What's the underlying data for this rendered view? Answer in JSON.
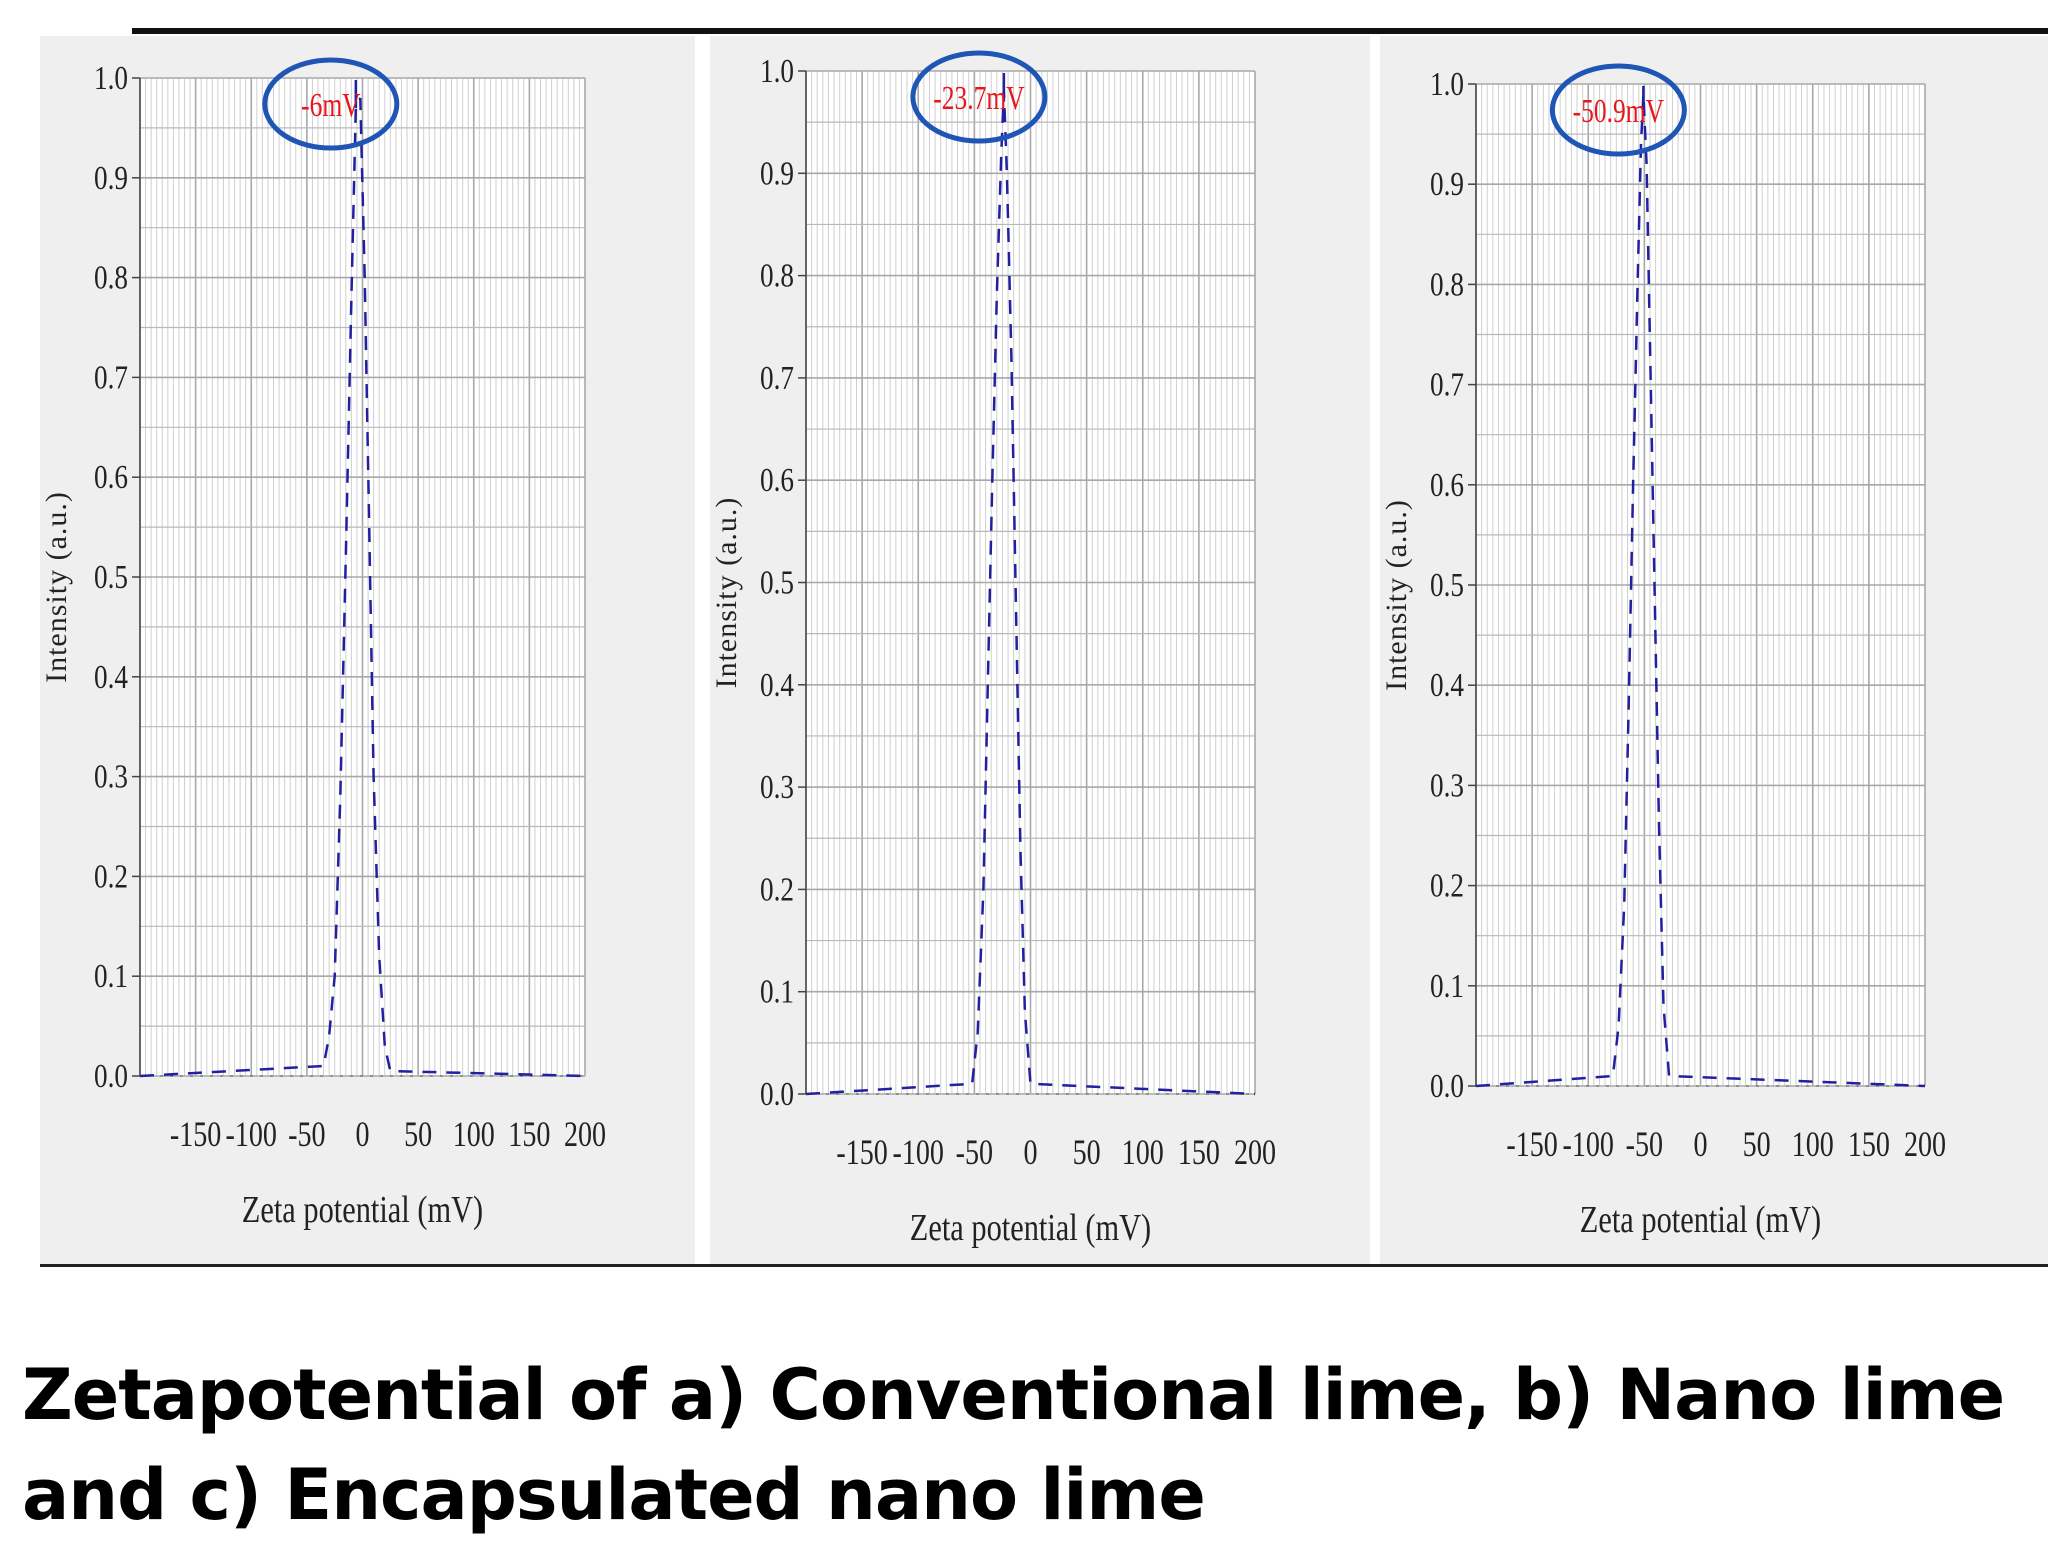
{
  "caption": "Zetapotential of a) Conventional lime, b) Nano lime and c) Encapsulated nano lime",
  "colors": {
    "curve": "#2020a0",
    "circle": "#1f55b5",
    "annotation": "#e8161d",
    "grid": "#b9b9b9",
    "panel_bg": "#efefef"
  },
  "chart_data": [
    {
      "type": "line",
      "xlabel": "Zeta potential (mV)",
      "ylabel": "Intensity (a.u.)",
      "xlim": [
        -200,
        200
      ],
      "ylim": [
        0,
        1.0
      ],
      "xticks": [
        -150,
        -100,
        -50,
        0,
        50,
        100,
        150,
        200
      ],
      "yticks": [
        0.0,
        0.1,
        0.2,
        0.3,
        0.4,
        0.5,
        0.6,
        0.7,
        0.8,
        0.9,
        1.0
      ],
      "grid": true,
      "annotation": "-6mV",
      "peak": -6,
      "series": [
        {
          "x": [
            -200,
            -35,
            -30,
            -25,
            -20,
            -15,
            -10,
            -6,
            -2,
            2,
            6,
            10,
            15,
            20,
            25,
            200
          ],
          "values": [
            0,
            0.01,
            0.04,
            0.1,
            0.28,
            0.52,
            0.78,
            0.97,
            0.98,
            0.8,
            0.55,
            0.3,
            0.12,
            0.03,
            0.005,
            0
          ]
        }
      ]
    },
    {
      "type": "line",
      "xlabel": "Zeta potential (mV)",
      "ylabel": "Intensity (a.u.)",
      "xlim": [
        -200,
        200
      ],
      "ylim": [
        0,
        1.0
      ],
      "xticks": [
        -150,
        -100,
        -50,
        0,
        50,
        100,
        150,
        200
      ],
      "yticks": [
        0.0,
        0.1,
        0.2,
        0.3,
        0.4,
        0.5,
        0.6,
        0.7,
        0.8,
        0.9,
        1.0
      ],
      "grid": true,
      "annotation": "-23.7mV",
      "peak": -23.7,
      "series": [
        {
          "x": [
            -200,
            -52,
            -47,
            -42,
            -38,
            -34,
            -30,
            -26,
            -23.7,
            -21,
            -17,
            -13,
            -9,
            -5,
            0,
            200
          ],
          "values": [
            0,
            0.01,
            0.06,
            0.2,
            0.4,
            0.6,
            0.78,
            0.92,
            0.98,
            0.9,
            0.72,
            0.48,
            0.24,
            0.08,
            0.01,
            0
          ]
        }
      ]
    },
    {
      "type": "line",
      "xlabel": "Zeta potential (mV)",
      "ylabel": "Intensity (a.u.)",
      "xlim": [
        -200,
        200
      ],
      "ylim": [
        0,
        1.0
      ],
      "xticks": [
        -150,
        -100,
        -50,
        0,
        50,
        100,
        150,
        200
      ],
      "yticks": [
        0.0,
        0.1,
        0.2,
        0.3,
        0.4,
        0.5,
        0.6,
        0.7,
        0.8,
        0.9,
        1.0
      ],
      "grid": true,
      "annotation": "-50.9mV",
      "peak": -50.9,
      "series": [
        {
          "x": [
            -200,
            -78,
            -73,
            -68,
            -64,
            -60,
            -56,
            -53,
            -50.9,
            -48,
            -45,
            -41,
            -37,
            -33,
            -28,
            200
          ],
          "values": [
            0,
            0.01,
            0.06,
            0.18,
            0.38,
            0.6,
            0.8,
            0.94,
            0.99,
            0.92,
            0.74,
            0.5,
            0.26,
            0.08,
            0.01,
            0
          ]
        }
      ]
    }
  ]
}
